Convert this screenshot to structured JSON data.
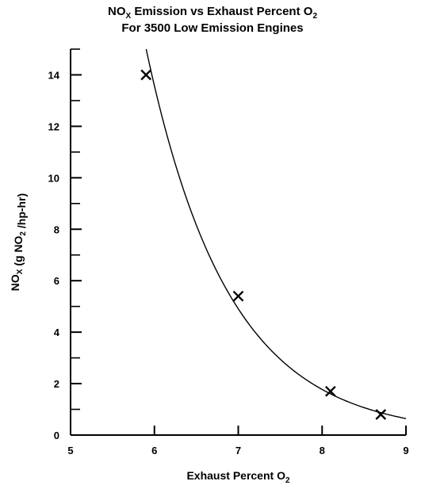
{
  "chart_data": {
    "type": "scatter",
    "title_parts": {
      "prefix": "NO",
      "prefix_sub": "X",
      "middle": " Emission vs Exhaust Percent O",
      "suffix_sub": "2"
    },
    "subtitle": "For 3500 Low Emission Engines",
    "xlabel_parts": {
      "text": "Exhaust Percent O",
      "sub": "2"
    },
    "ylabel_parts": {
      "a": "NO",
      "a_sub": "X",
      "b": " (g NO",
      "b_sub": "2",
      "c": " /hp-hr)"
    },
    "xlim": [
      5,
      9
    ],
    "ylim": [
      0,
      15
    ],
    "x_ticks": [
      5,
      6,
      7,
      8,
      9
    ],
    "y_ticks": [
      0,
      2,
      4,
      6,
      8,
      10,
      12,
      14
    ],
    "y_minor_ticks": [
      1,
      3,
      5,
      7,
      9,
      11,
      13,
      15
    ],
    "grid": false,
    "series": [
      {
        "marker": "x",
        "points": [
          {
            "x": 5.9,
            "y": 14.0
          },
          {
            "x": 7.0,
            "y": 5.4
          },
          {
            "x": 8.1,
            "y": 1.7
          },
          {
            "x": 8.7,
            "y": 0.8
          }
        ],
        "fit_curve": true
      }
    ]
  }
}
